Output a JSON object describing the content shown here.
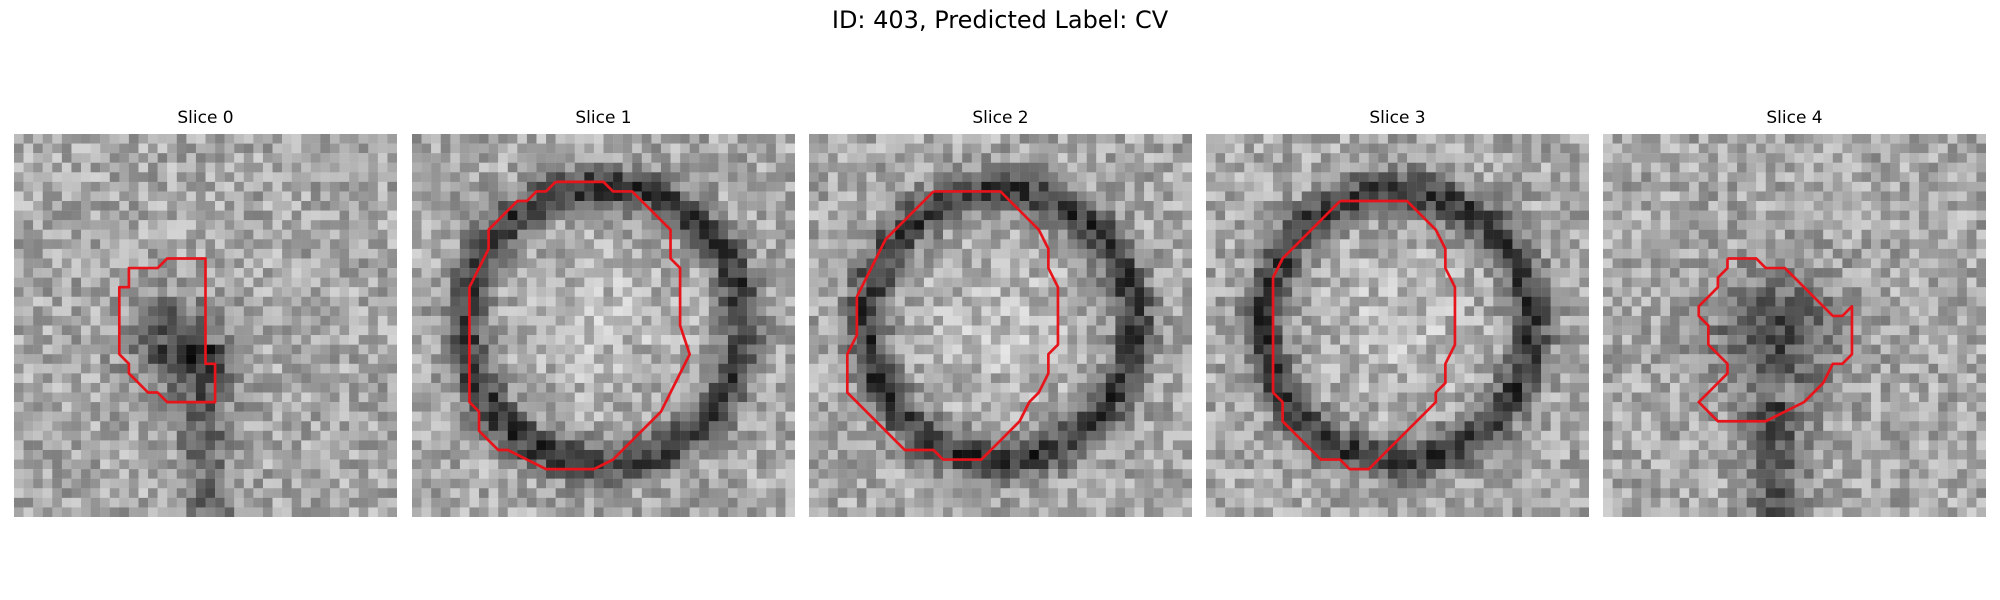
{
  "figure": {
    "title": "ID: 403, Predicted Label: CV"
  },
  "panels": [
    {
      "title": "Slice 0",
      "contour": [
        [
          17.5,
          13
        ],
        [
          20,
          13
        ],
        [
          20,
          24
        ],
        [
          21,
          24
        ],
        [
          21,
          28
        ],
        [
          16,
          28
        ],
        [
          15,
          27
        ],
        [
          14,
          27
        ],
        [
          13,
          26
        ],
        [
          12,
          25
        ],
        [
          12,
          24
        ],
        [
          11,
          23
        ],
        [
          11,
          16
        ],
        [
          12,
          16
        ],
        [
          12,
          14
        ],
        [
          13,
          14
        ],
        [
          14,
          14
        ],
        [
          15,
          14
        ],
        [
          16,
          13
        ],
        [
          17.5,
          13
        ]
      ]
    },
    {
      "title": "Slice 1",
      "contour": [
        [
          15,
          5
        ],
        [
          20,
          5
        ],
        [
          21,
          6
        ],
        [
          23,
          6
        ],
        [
          24,
          7
        ],
        [
          25,
          8
        ],
        [
          26,
          9
        ],
        [
          27,
          10
        ],
        [
          27,
          13
        ],
        [
          28,
          14
        ],
        [
          28,
          17
        ],
        [
          28,
          20
        ],
        [
          29,
          23
        ],
        [
          28,
          25
        ],
        [
          27,
          27
        ],
        [
          26,
          29
        ],
        [
          25,
          30
        ],
        [
          23,
          32
        ],
        [
          22,
          33
        ],
        [
          21,
          34
        ],
        [
          19,
          35
        ],
        [
          14,
          35
        ],
        [
          12,
          34
        ],
        [
          10,
          33
        ],
        [
          9,
          33
        ],
        [
          8,
          32
        ],
        [
          7,
          31
        ],
        [
          7,
          29
        ],
        [
          6,
          28
        ],
        [
          6,
          25
        ],
        [
          6,
          22
        ],
        [
          6,
          16
        ],
        [
          7,
          14
        ],
        [
          8,
          12
        ],
        [
          8,
          10
        ],
        [
          9,
          9
        ],
        [
          10,
          8
        ],
        [
          11,
          7
        ],
        [
          12,
          7
        ],
        [
          13,
          6
        ],
        [
          14,
          6
        ],
        [
          15,
          5
        ]
      ]
    },
    {
      "title": "Slice 2",
      "contour": [
        [
          13,
          6
        ],
        [
          20,
          6
        ],
        [
          21,
          7
        ],
        [
          22,
          8
        ],
        [
          23,
          9
        ],
        [
          24,
          10
        ],
        [
          25,
          12
        ],
        [
          25,
          14
        ],
        [
          26,
          16
        ],
        [
          26,
          18
        ],
        [
          26,
          20
        ],
        [
          26,
          22
        ],
        [
          25,
          23
        ],
        [
          25,
          25
        ],
        [
          24,
          27
        ],
        [
          23,
          28
        ],
        [
          22,
          30
        ],
        [
          21,
          31
        ],
        [
          20,
          32
        ],
        [
          19,
          33
        ],
        [
          18,
          34
        ],
        [
          14,
          34
        ],
        [
          13,
          33
        ],
        [
          10,
          33
        ],
        [
          9,
          32
        ],
        [
          8,
          31
        ],
        [
          7,
          30
        ],
        [
          6,
          29
        ],
        [
          5,
          28
        ],
        [
          4,
          27
        ],
        [
          4,
          25
        ],
        [
          4,
          23
        ],
        [
          5,
          21
        ],
        [
          5,
          17
        ],
        [
          6,
          15
        ],
        [
          7,
          13
        ],
        [
          8,
          11
        ],
        [
          9,
          10
        ],
        [
          10,
          9
        ],
        [
          11,
          8
        ],
        [
          12,
          7
        ],
        [
          13,
          6
        ]
      ]
    },
    {
      "title": "Slice 3",
      "contour": [
        [
          14,
          7
        ],
        [
          21,
          7
        ],
        [
          22,
          8
        ],
        [
          23,
          9
        ],
        [
          24,
          10
        ],
        [
          25,
          12
        ],
        [
          25,
          14
        ],
        [
          26,
          16
        ],
        [
          26,
          22
        ],
        [
          25,
          24
        ],
        [
          25,
          26
        ],
        [
          24,
          27
        ],
        [
          24,
          28
        ],
        [
          23,
          29
        ],
        [
          22,
          30
        ],
        [
          21,
          31
        ],
        [
          20,
          32
        ],
        [
          19,
          33
        ],
        [
          18,
          34
        ],
        [
          17,
          35
        ],
        [
          15,
          35
        ],
        [
          14,
          34
        ],
        [
          12,
          34
        ],
        [
          11,
          33
        ],
        [
          10,
          32
        ],
        [
          9,
          31
        ],
        [
          8,
          30
        ],
        [
          8,
          28
        ],
        [
          7,
          27
        ],
        [
          7,
          25
        ],
        [
          7,
          20
        ],
        [
          7,
          15
        ],
        [
          8,
          13
        ],
        [
          9,
          12
        ],
        [
          10,
          11
        ],
        [
          11,
          10
        ],
        [
          12,
          9
        ],
        [
          13,
          8
        ],
        [
          14,
          7
        ]
      ]
    },
    {
      "title": "Slice 4",
      "contour": [
        [
          13,
          13
        ],
        [
          16,
          13
        ],
        [
          17,
          14
        ],
        [
          19,
          14
        ],
        [
          20,
          15
        ],
        [
          21,
          16
        ],
        [
          22,
          17
        ],
        [
          23,
          18
        ],
        [
          24,
          19
        ],
        [
          25,
          19
        ],
        [
          26,
          18
        ],
        [
          26,
          23
        ],
        [
          25,
          24
        ],
        [
          24,
          24
        ],
        [
          23,
          26
        ],
        [
          22,
          27
        ],
        [
          21,
          28
        ],
        [
          19,
          29
        ],
        [
          17,
          30
        ],
        [
          12,
          30
        ],
        [
          11,
          29
        ],
        [
          10,
          28
        ],
        [
          11,
          27
        ],
        [
          12,
          26
        ],
        [
          13,
          25
        ],
        [
          13,
          24
        ],
        [
          12,
          23
        ],
        [
          11,
          22
        ],
        [
          11,
          20
        ],
        [
          10,
          19
        ],
        [
          10,
          18
        ],
        [
          11,
          17
        ],
        [
          12,
          16
        ],
        [
          12,
          15
        ],
        [
          13,
          14
        ],
        [
          13,
          13
        ]
      ]
    }
  ]
}
